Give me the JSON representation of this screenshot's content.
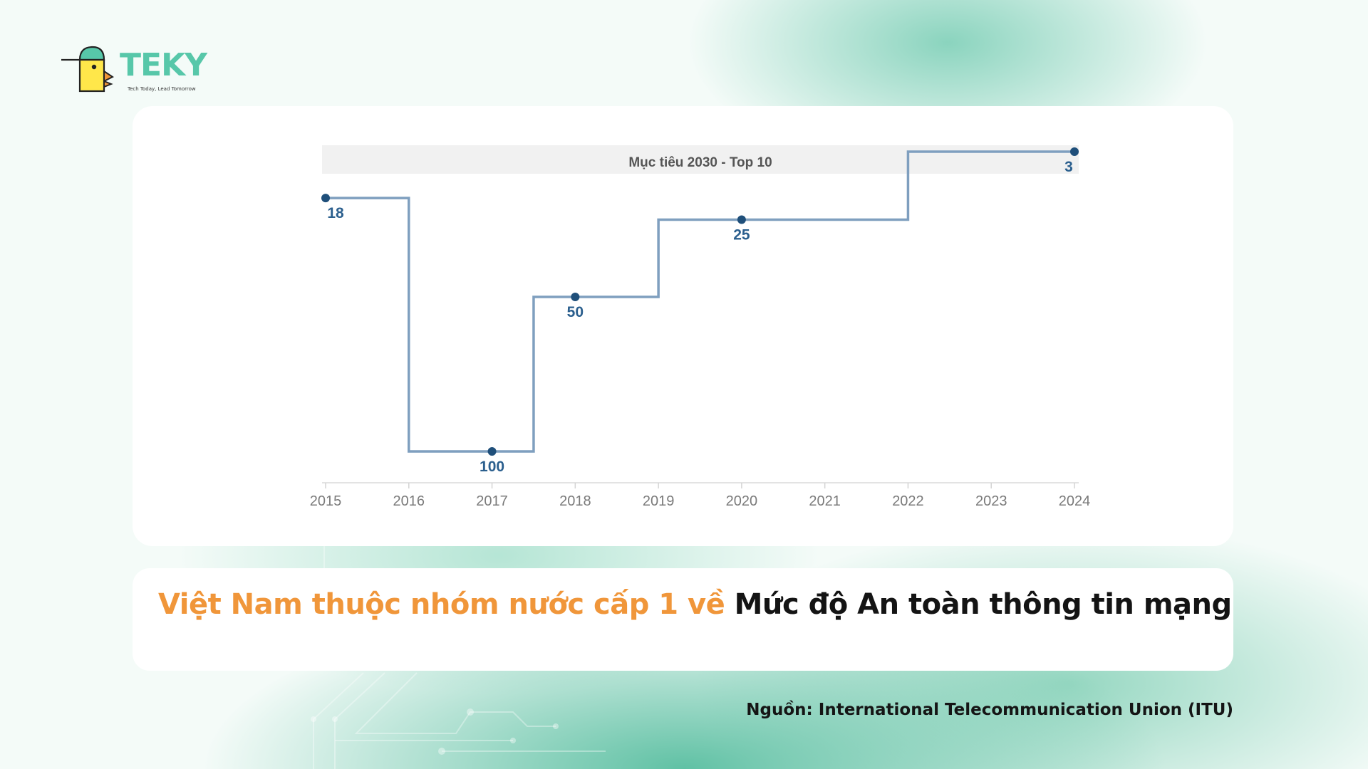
{
  "brand": {
    "name": "TEKY",
    "tagline": "Tech Today, Lead Tomorrow"
  },
  "chart_data": {
    "type": "line",
    "step": true,
    "inverted_y": true,
    "x": [
      "2015",
      "2016",
      "2017",
      "2018",
      "2019",
      "2020",
      "2021",
      "2022",
      "2023",
      "2024"
    ],
    "points": [
      {
        "x": "2015",
        "value": 18
      },
      {
        "x": "2017",
        "value": 100
      },
      {
        "x": "2018",
        "value": 50
      },
      {
        "x": "2020",
        "value": 25
      },
      {
        "x": "2024",
        "value": 3
      }
    ],
    "target_band": {
      "label": "Mục tiêu 2030 - Top 10",
      "range": [
        0,
        10
      ]
    },
    "line_color": "#7f9fbf",
    "point_color": "#1f4f7a",
    "label_color": "#2b5f8e"
  },
  "caption": {
    "highlight": "Việt Nam thuộc nhóm nước cấp 1 về ",
    "rest": "Mức độ An toàn thông tin mạng"
  },
  "source": "Nguồn: International Telecommunication Union (ITU)",
  "colors": {
    "brand_green": "#57c7a9",
    "accent_orange": "#f0963a"
  }
}
